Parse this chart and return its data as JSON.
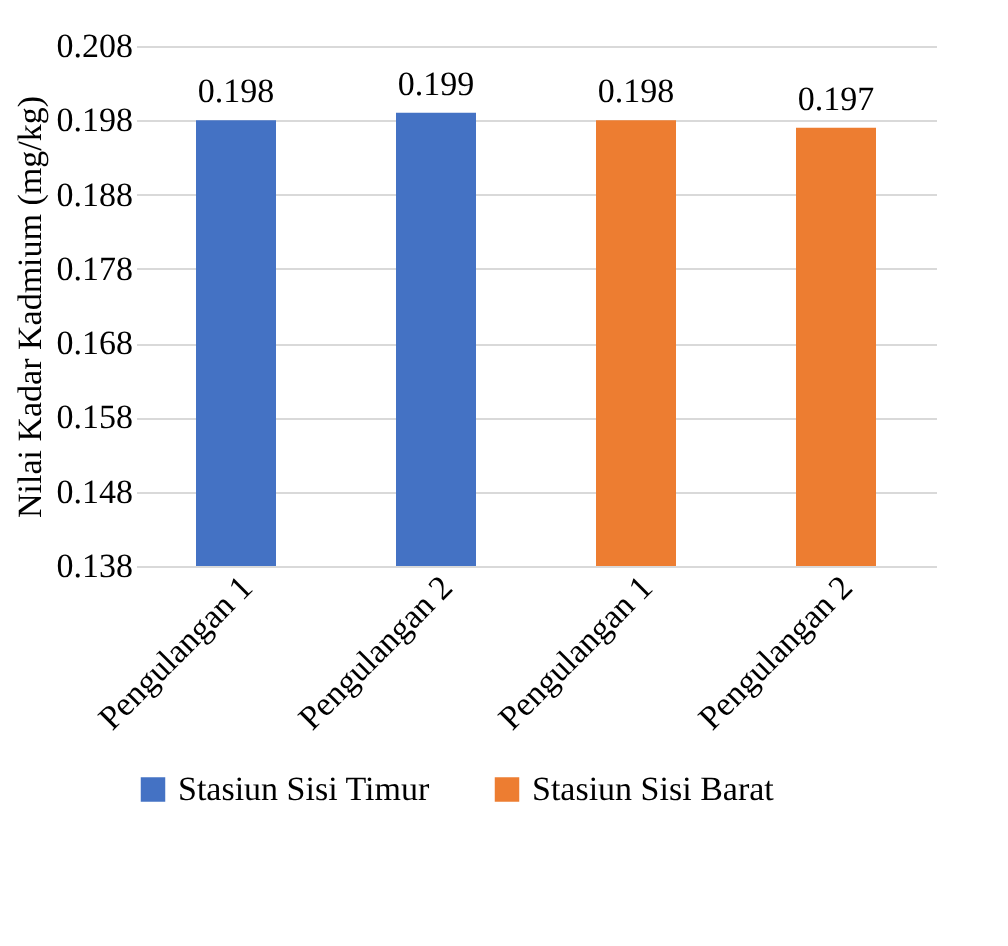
{
  "chart_data": {
    "type": "bar",
    "ylabel": "Nilai Kadar Kadmium (mg/kg)",
    "categories": [
      "Pengulangan 1",
      "Pengulangan 2",
      "Pengulangan 1",
      "Pengulangan 2"
    ],
    "series": [
      {
        "name": "Stasiun Sisi Timur",
        "color": "#4472c4",
        "values": [
          0.198,
          0.199,
          null,
          null
        ]
      },
      {
        "name": "Stasiun Sisi Barat",
        "color": "#ed7d31",
        "values": [
          null,
          null,
          0.198,
          0.197
        ]
      }
    ],
    "ylim": [
      0.138,
      0.208
    ],
    "yticks": [
      0.138,
      0.148,
      0.158,
      0.168,
      0.178,
      0.188,
      0.198,
      0.208
    ],
    "grid": "y",
    "legend": "bottom",
    "data_labels": true
  }
}
